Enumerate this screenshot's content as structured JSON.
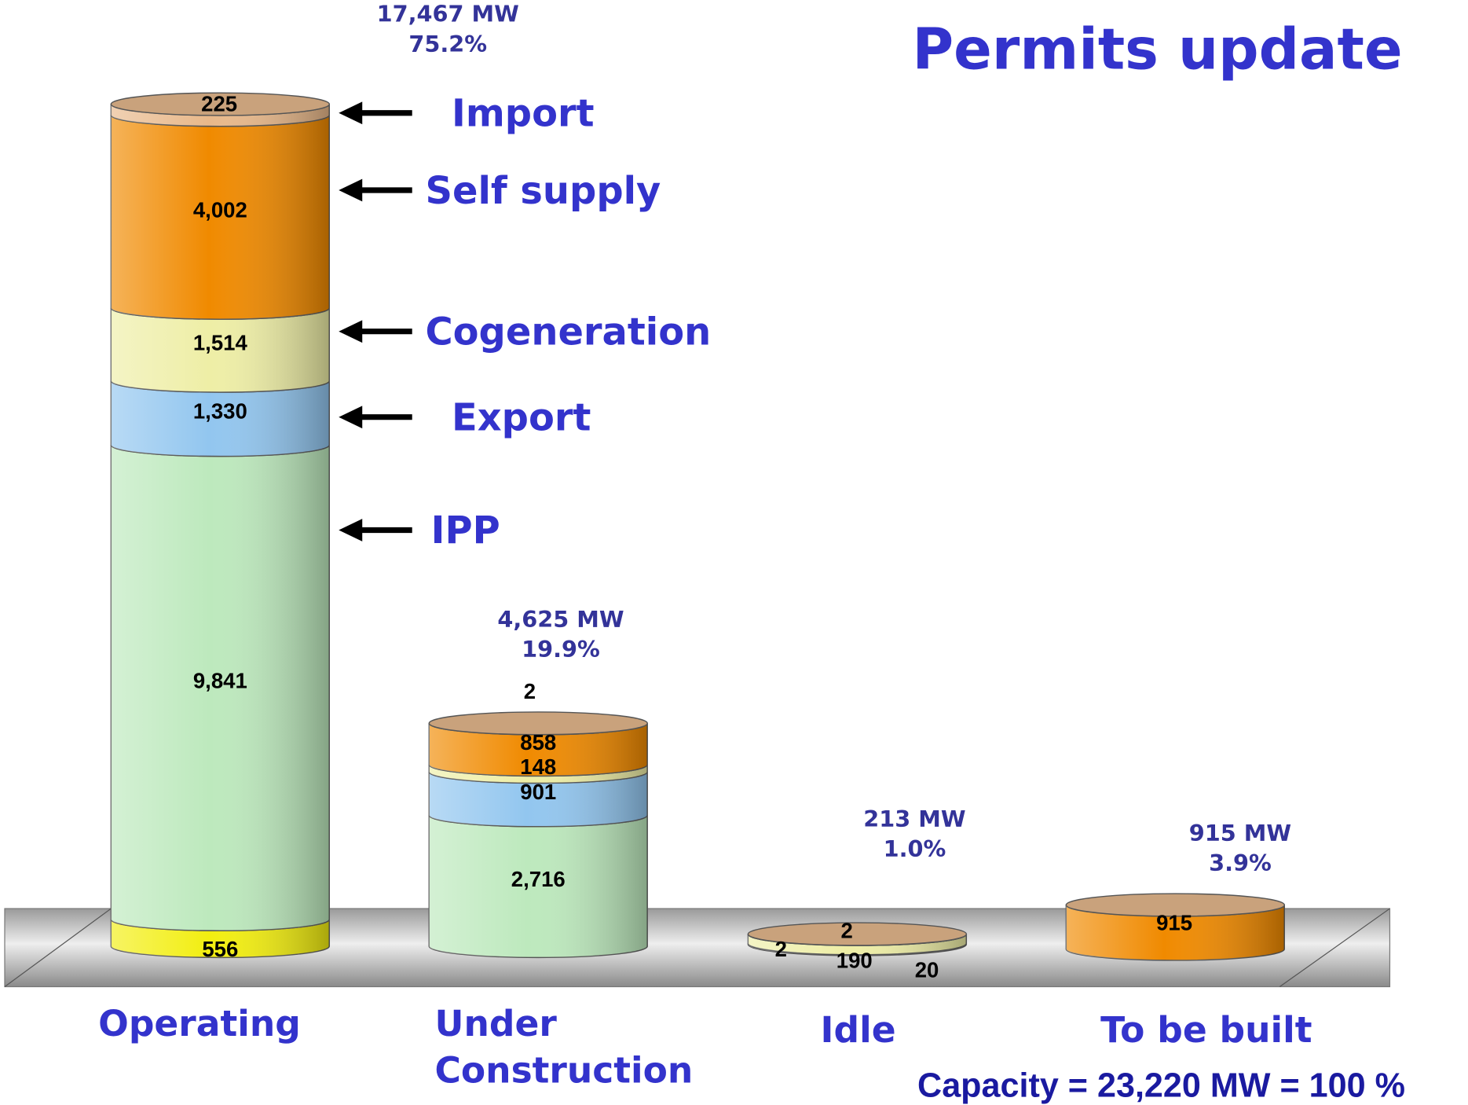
{
  "chart_data": {
    "type": "bar",
    "stacked": true,
    "title": "Permits update",
    "note": "Capacity = 23,220 MW = 100 %",
    "categories": [
      "Operating",
      "Under Construction",
      "Idle",
      "To be built"
    ],
    "totals": [
      {
        "amount": "17,467 MW",
        "share": "75.2%"
      },
      {
        "amount": "4,625 MW",
        "share": "19.9%"
      },
      {
        "amount": "213 MW",
        "share": "1.0%"
      },
      {
        "amount": "915 MW",
        "share": "3.9%"
      }
    ],
    "series": [
      {
        "color": "#f2ee10",
        "values": [
          556,
          null,
          20,
          null
        ],
        "value_labels": [
          "556",
          null,
          "20",
          null
        ]
      },
      {
        "name": "IPP",
        "color": "#bde9bd",
        "values": [
          9841,
          2716,
          null,
          null
        ],
        "value_labels": [
          "9,841",
          "2,716",
          null,
          null
        ]
      },
      {
        "name": "Export",
        "color": "#92c6ef",
        "values": [
          1330,
          901,
          null,
          null
        ],
        "value_labels": [
          "1,330",
          "901",
          null,
          null
        ]
      },
      {
        "name": "Cogeneration",
        "color": "#eeeea6",
        "values": [
          1514,
          148,
          190,
          null
        ],
        "value_labels": [
          "1,514",
          "148",
          "190",
          null
        ]
      },
      {
        "name": "Self supply",
        "color": "#f08a00",
        "values": [
          4002,
          858,
          2,
          915
        ],
        "value_labels": [
          "4,002",
          "858",
          "2",
          "915"
        ]
      },
      {
        "name": "Import",
        "color": "#e8b88a",
        "values": [
          225,
          2,
          2,
          null
        ],
        "value_labels": [
          "225",
          "2",
          "2",
          null
        ]
      }
    ]
  }
}
